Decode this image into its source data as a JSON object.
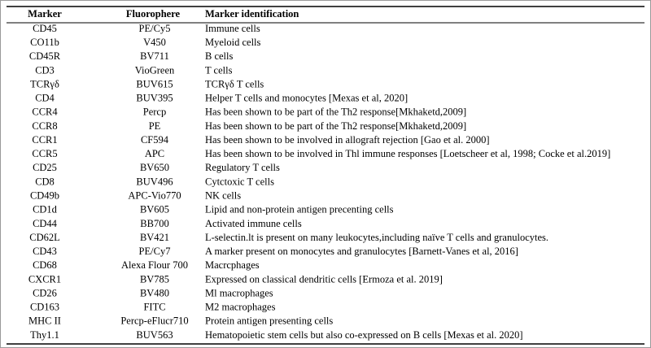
{
  "table": {
    "header": [
      "Marker",
      "Fluorophere",
      "Marker identification"
    ],
    "rows": [
      [
        "CD45",
        "PE/Cy5",
        "Immune cells"
      ],
      [
        "CO11b",
        "V450",
        "Myeloid cells"
      ],
      [
        "CD45R",
        "BV711",
        "B cells"
      ],
      [
        "CD3",
        "VioGreen",
        "T cells"
      ],
      [
        "TCRγδ",
        "BUV615",
        "TCRγδ T cells"
      ],
      [
        "CD4",
        "BUV395",
        "Helper T cells and monocytes [Mexas et al, 2020]"
      ],
      [
        "CCR4",
        "Percp",
        "Has been shown to be part of the Th2 response[Mkhaketd,2009]"
      ],
      [
        "CCR8",
        "PE",
        "Has been shown to be part of the Th2 response[Mkhaketd,2009]"
      ],
      [
        "CCR1",
        "CF594",
        "Has been shown to be involved in allograft rejection [Gao et al. 2000]"
      ],
      [
        "CCR5",
        "APC",
        "Has been shown to be involved in Thl immune responses [Loetscheer et al, 1998; Cocke et al.2019]"
      ],
      [
        "CD25",
        "BV650",
        "Regulatory T cells"
      ],
      [
        "CD8",
        "BUV496",
        "Cytctoxic T cells"
      ],
      [
        "CD49b",
        "APC-Vio770",
        "NK cells"
      ],
      [
        "CD1d",
        "BV605",
        "Lipid and non-protein antigen precenting cells"
      ],
      [
        "CD44",
        "BB700",
        "Activated immune cells"
      ],
      [
        "CD62L",
        "BV421",
        "L-selectin.lt is present on many leukocytes,including naïve T cells and granulocytes."
      ],
      [
        "CD43",
        "PE/Cy7",
        "A marker present on monocytes and granulocytes [Barnett-Vanes et al, 2016]"
      ],
      [
        "CD68",
        "Alexa Flour 700",
        "Macrcphages"
      ],
      [
        "CXCR1",
        "BV785",
        "Expressed on classical dendritic cells [Ermoza et al. 2019]"
      ],
      [
        "CD26",
        "BV480",
        "Ml macrophages"
      ],
      [
        "CD163",
        "FITC",
        "M2 macrophages"
      ],
      [
        "MHC II",
        "Percp-eFlucr710",
        "Protein antigen presenting cells"
      ],
      [
        "Thy1.1",
        "BUV563",
        "Hematopoietic stem cells but also co-expressed on B cells [Mexas et al. 2020]"
      ]
    ]
  }
}
